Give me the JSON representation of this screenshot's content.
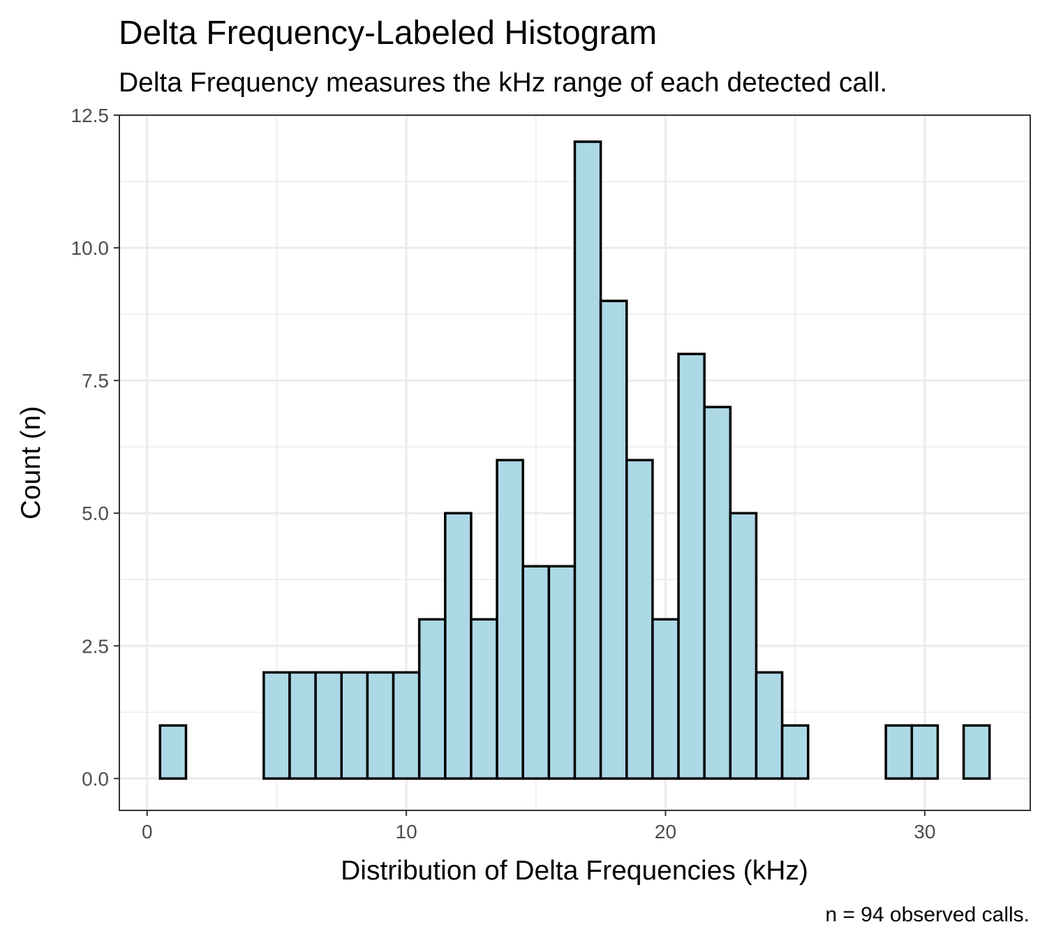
{
  "chart_data": {
    "type": "bar",
    "title": "Delta Frequency-Labeled Histogram",
    "subtitle": "Delta Frequency measures the kHz range of each detected call.",
    "xlabel": "Distribution of Delta Frequencies (kHz)",
    "ylabel": "Count (n)",
    "caption": "n = 94 observed calls.",
    "xlim": [
      -1.07,
      34.07
    ],
    "ylim": [
      -0.6,
      12.5
    ],
    "x_ticks": [
      0,
      10,
      20,
      30
    ],
    "x_tick_labels": [
      "0",
      "10",
      "20",
      "30"
    ],
    "y_ticks": [
      0,
      2.5,
      5,
      7.5,
      10,
      12.5
    ],
    "y_tick_labels": [
      "0.0",
      "2.5",
      "5.0",
      "7.5",
      "10.0",
      "12.5"
    ],
    "bin_width": 1,
    "bin_centers": [
      1,
      2,
      3,
      4,
      5,
      6,
      7,
      8,
      9,
      10,
      11,
      12,
      13,
      14,
      15,
      16,
      17,
      18,
      19,
      20,
      21,
      22,
      23,
      24,
      25,
      26,
      27,
      28,
      29,
      30,
      31,
      32
    ],
    "values": [
      1,
      0,
      0,
      0,
      2,
      2,
      2,
      2,
      2,
      2,
      3,
      5,
      3,
      6,
      4,
      4,
      12,
      9,
      6,
      3,
      8,
      7,
      5,
      2,
      1,
      0,
      0,
      0,
      1,
      1,
      0,
      1
    ],
    "bar_fill": "#add8e6",
    "bar_stroke": "#000000",
    "grid": true,
    "grid_color": "#ebebeb",
    "panel_border_color": "#333333"
  }
}
